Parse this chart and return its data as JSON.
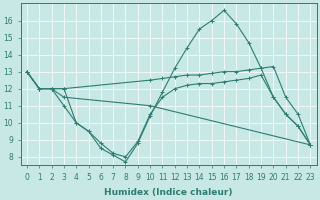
{
  "xlabel": "Humidex (Indice chaleur)",
  "xlim": [
    -0.5,
    23.5
  ],
  "ylim": [
    7.5,
    17.0
  ],
  "yticks": [
    8,
    9,
    10,
    11,
    12,
    13,
    14,
    15,
    16
  ],
  "xticks": [
    0,
    1,
    2,
    3,
    4,
    5,
    6,
    7,
    8,
    9,
    10,
    11,
    12,
    13,
    14,
    15,
    16,
    17,
    18,
    19,
    20,
    21,
    22,
    23
  ],
  "bg_color": "#c8e8e5",
  "line_color": "#2e7d72",
  "grid_color": "#ffffff",
  "lines": [
    {
      "x": [
        0,
        1,
        2,
        3,
        4,
        5,
        6,
        7,
        8,
        9,
        10,
        11,
        12,
        13,
        14,
        15,
        16,
        17,
        18,
        19,
        20,
        21,
        22,
        23
      ],
      "y": [
        13,
        12,
        12,
        12,
        10,
        9.5,
        8.5,
        8.1,
        7.7,
        8.8,
        10.4,
        11.8,
        13.2,
        14.4,
        15.5,
        16.0,
        16.6,
        15.8,
        14.7,
        13.2,
        11.5,
        10.5,
        9.8,
        8.7
      ]
    },
    {
      "x": [
        0,
        1,
        2,
        3,
        10,
        11,
        12,
        13,
        14,
        15,
        16,
        17,
        18,
        19,
        20,
        21,
        22,
        23
      ],
      "y": [
        13,
        12,
        12,
        12,
        12.5,
        12.6,
        12.7,
        12.8,
        12.8,
        12.9,
        13.0,
        13.0,
        13.1,
        13.2,
        13.3,
        11.5,
        10.5,
        8.7
      ]
    },
    {
      "x": [
        0,
        1,
        2,
        3,
        10,
        23
      ],
      "y": [
        13,
        12,
        12,
        11.5,
        11.0,
        8.7
      ]
    },
    {
      "x": [
        0,
        1,
        2,
        3,
        4,
        5,
        6,
        7,
        8,
        9,
        10,
        11,
        12,
        13,
        14,
        15,
        16,
        17,
        18,
        19,
        20,
        21,
        22,
        23
      ],
      "y": [
        13,
        12,
        12,
        11,
        10,
        9.5,
        8.8,
        8.2,
        8.0,
        8.9,
        10.5,
        11.5,
        12.0,
        12.2,
        12.3,
        12.3,
        12.4,
        12.5,
        12.6,
        12.8,
        11.5,
        10.5,
        9.8,
        8.7
      ]
    }
  ]
}
